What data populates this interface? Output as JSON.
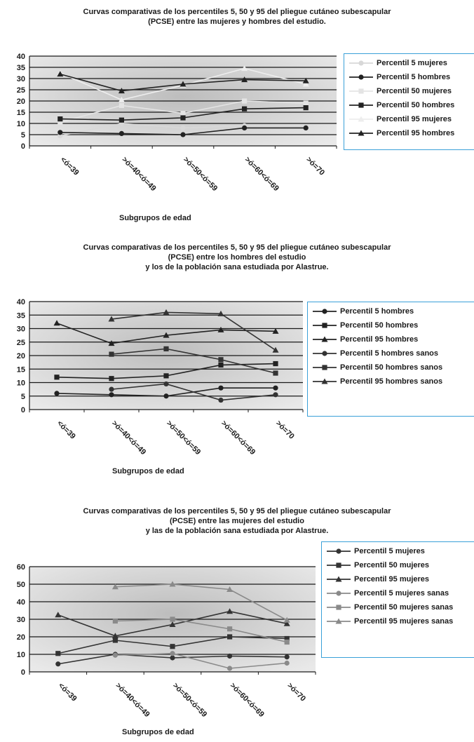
{
  "chart_data": [
    {
      "type": "line",
      "title": [
        "Curvas comparativas de los percentiles 5, 50 y 95 del pliegue cutáneo subescapular",
        "(PCSE) entre las mujeres y hombres del estudio."
      ],
      "xlabel": "Subgrupos de edad",
      "ylabel": "",
      "categories": [
        "<ó=39",
        ">ó=40<ó=49",
        ">ó=50<ó=59",
        ">ó=60<ó=69",
        ">ó=70"
      ],
      "ylim": [
        0,
        40
      ],
      "yticks": [
        0,
        5,
        10,
        15,
        20,
        25,
        30,
        35,
        40
      ],
      "grid": true,
      "legend_position": "right",
      "series": [
        {
          "name": "Percentil 5 mujeres",
          "values": [
            4.5,
            10,
            8,
            9,
            8.5
          ],
          "color": "#d8d8d8",
          "marker": "circle"
        },
        {
          "name": "Percentil 5 hombres",
          "values": [
            6,
            5.5,
            5,
            8,
            8
          ],
          "color": "#222222",
          "marker": "circle"
        },
        {
          "name": "Percentil 50 mujeres",
          "values": [
            10.5,
            18,
            14.5,
            20,
            19
          ],
          "color": "#e4e4e4",
          "marker": "square"
        },
        {
          "name": "Percentil 50 hombres",
          "values": [
            12,
            11.5,
            12.5,
            16.5,
            17
          ],
          "color": "#222222",
          "marker": "square"
        },
        {
          "name": "Percentil 95 mujeres",
          "values": [
            32.5,
            20.5,
            27,
            34.5,
            27.5
          ],
          "color": "#ededed",
          "marker": "triangle"
        },
        {
          "name": "Percentil 95 hombres",
          "values": [
            32,
            24.5,
            27.5,
            29.5,
            29
          ],
          "color": "#222222",
          "marker": "triangle"
        }
      ]
    },
    {
      "type": "line",
      "title": [
        "Curvas comparativas de los percentiles 5, 50 y 95 del pliegue cutáneo subescapular",
        "(PCSE) entre los hombres del estudio",
        "y los de la población sana estudiada por Alastrue."
      ],
      "xlabel": "Subgrupos de edad",
      "ylabel": "",
      "categories": [
        "<ó=39",
        ">ó=40<ó=49",
        ">ó=50<ó=59",
        ">ó=60<ó=69",
        ">ó=70"
      ],
      "ylim": [
        0,
        40
      ],
      "yticks": [
        0,
        5,
        10,
        15,
        20,
        25,
        30,
        35,
        40
      ],
      "grid": true,
      "legend_position": "right",
      "series": [
        {
          "name": "Percentil 5 hombres",
          "values": [
            6,
            5.5,
            5,
            8,
            8
          ],
          "color": "#222222",
          "marker": "circle"
        },
        {
          "name": "Percentil 50 hombres",
          "values": [
            12,
            11.5,
            12.5,
            16.5,
            17
          ],
          "color": "#222222",
          "marker": "square"
        },
        {
          "name": "Percentil 95 hombres",
          "values": [
            32,
            24.5,
            27.5,
            29.5,
            29
          ],
          "color": "#222222",
          "marker": "triangle"
        },
        {
          "name": "Percentil 5 hombres sanos",
          "values": [
            null,
            7.5,
            9.5,
            3.5,
            5.5
          ],
          "color": "#333333",
          "marker": "circle"
        },
        {
          "name": "Percentil 50 hombres sanos",
          "values": [
            null,
            20.5,
            22.5,
            18.5,
            13.5
          ],
          "color": "#333333",
          "marker": "square"
        },
        {
          "name": "Percentil 95 hombres sanos",
          "values": [
            null,
            33.5,
            36,
            35.5,
            22
          ],
          "color": "#333333",
          "marker": "triangle"
        }
      ]
    },
    {
      "type": "line",
      "title": [
        "Curvas comparativas de los percentiles 5, 50 y 95 del pliegue cutáneo subescapular",
        "(PCSE) entre las mujeres del estudio",
        "y las de la población sana estudiada por Alastrue."
      ],
      "xlabel": "Subgrupos de edad",
      "ylabel": "",
      "categories": [
        "<ó=39",
        ">ó=40<ó=49",
        ">ó=50<ó=59",
        ">ó=60<ó=69",
        ">ó=70"
      ],
      "ylim": [
        0,
        60
      ],
      "yticks": [
        0,
        10,
        20,
        30,
        40,
        50,
        60
      ],
      "grid": true,
      "legend_position": "right",
      "series": [
        {
          "name": "Percentil 5 mujeres",
          "values": [
            4.5,
            10,
            8,
            9,
            8.5
          ],
          "color": "#333333",
          "marker": "circle"
        },
        {
          "name": "Percentil 50 mujeres",
          "values": [
            10.5,
            18,
            14.5,
            20,
            19
          ],
          "color": "#333333",
          "marker": "square"
        },
        {
          "name": "Percentil 95 mujeres",
          "values": [
            32.5,
            20.5,
            27,
            34.5,
            27.5
          ],
          "color": "#333333",
          "marker": "triangle"
        },
        {
          "name": "Percentil 5 mujeres sanas",
          "values": [
            null,
            9.5,
            10.5,
            2,
            5
          ],
          "color": "#8a8a8a",
          "marker": "circle"
        },
        {
          "name": "Percentil 50 mujeres sanas",
          "values": [
            null,
            29,
            30,
            24.5,
            17
          ],
          "color": "#8a8a8a",
          "marker": "square"
        },
        {
          "name": "Percentil 95 mujeres sanas",
          "values": [
            null,
            48.5,
            50,
            47,
            29.5
          ],
          "color": "#8a8a8a",
          "marker": "triangle"
        }
      ]
    }
  ]
}
